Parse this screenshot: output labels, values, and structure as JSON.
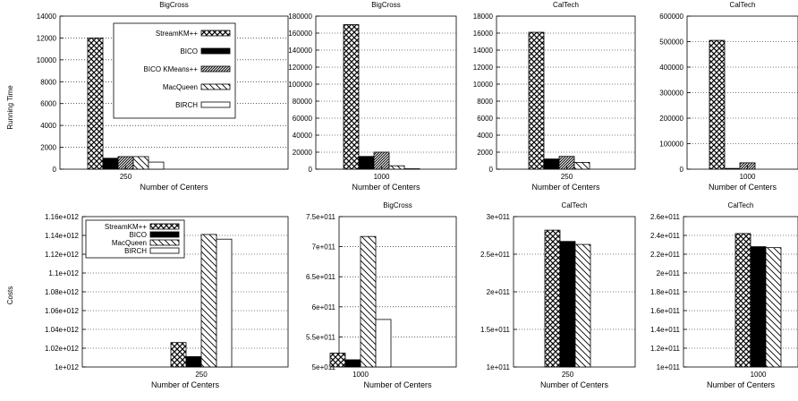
{
  "figure": {
    "row_labels": [
      "Running Time",
      "Costs"
    ]
  },
  "chart_data": [
    {
      "type": "bar",
      "title": "BigCross",
      "xlabel": "Number of Centers",
      "ylabel": "Running Time",
      "categories": [
        "250"
      ],
      "ylim": [
        0,
        14000
      ],
      "yticks": [
        0,
        2000,
        4000,
        6000,
        8000,
        10000,
        12000,
        14000
      ],
      "ytick_labels": [
        "0",
        "2000",
        "4000",
        "6000",
        "8000",
        "10000",
        "12000",
        "14000"
      ],
      "grid": true,
      "legend_position": "top-right",
      "series": [
        {
          "name": "StreamKM++",
          "values": [
            12000
          ]
        },
        {
          "name": "BICO",
          "values": [
            1000
          ]
        },
        {
          "name": "BICO KMeans++",
          "values": [
            1150
          ]
        },
        {
          "name": "MacQueen",
          "values": [
            1150
          ]
        },
        {
          "name": "BIRCH",
          "values": [
            650
          ]
        }
      ]
    },
    {
      "type": "bar",
      "title": "BigCross",
      "xlabel": "Number of Centers",
      "ylabel": "",
      "categories": [
        "1000"
      ],
      "ylim": [
        0,
        180000
      ],
      "yticks": [
        0,
        20000,
        40000,
        60000,
        80000,
        100000,
        120000,
        140000,
        160000,
        180000
      ],
      "ytick_labels": [
        "0",
        "20000",
        "40000",
        "60000",
        "80000",
        "100000",
        "120000",
        "140000",
        "160000",
        "180000"
      ],
      "grid": true,
      "series": [
        {
          "values": [
            170000
          ]
        },
        {
          "values": [
            15000
          ]
        },
        {
          "values": [
            20000
          ]
        },
        {
          "values": [
            4000
          ]
        },
        {
          "values": [
            500
          ]
        }
      ]
    },
    {
      "type": "bar",
      "title": "CalTech",
      "xlabel": "Number of Centers",
      "ylabel": "",
      "categories": [
        "250"
      ],
      "ylim": [
        0,
        18000
      ],
      "yticks": [
        0,
        2000,
        4000,
        6000,
        8000,
        10000,
        12000,
        14000,
        16000,
        18000
      ],
      "ytick_labels": [
        "0",
        "2000",
        "4000",
        "6000",
        "8000",
        "10000",
        "12000",
        "14000",
        "16000",
        "18000"
      ],
      "grid": true,
      "series": [
        {
          "values": [
            16100
          ]
        },
        {
          "values": [
            1200
          ]
        },
        {
          "values": [
            1500
          ]
        },
        {
          "values": [
            800
          ]
        },
        {
          "values": [
            0
          ]
        }
      ]
    },
    {
      "type": "bar",
      "title": "CalTech",
      "xlabel": "Number of Centers",
      "ylabel": "",
      "categories": [
        "1000"
      ],
      "ylim": [
        0,
        600000
      ],
      "yticks": [
        0,
        100000,
        200000,
        300000,
        400000,
        500000,
        600000
      ],
      "ytick_labels": [
        "0",
        "100000",
        "200000",
        "300000",
        "400000",
        "500000",
        "600000"
      ],
      "grid": true,
      "series": [
        {
          "values": [
            505000
          ]
        },
        {
          "values": [
            3000
          ]
        },
        {
          "values": [
            25000
          ]
        },
        {
          "values": [
            1000
          ]
        },
        {
          "values": [
            0
          ]
        }
      ]
    },
    {
      "type": "bar",
      "title": "",
      "xlabel": "Number of Centers",
      "ylabel": "Costs",
      "categories": [
        "250"
      ],
      "ylim": [
        1000000000000.0,
        1160000000000.0
      ],
      "yticks": [
        1000000000000.0,
        1020000000000.0,
        1040000000000.0,
        1060000000000.0,
        1080000000000.0,
        1100000000000.0,
        1120000000000.0,
        1140000000000.0,
        1160000000000.0
      ],
      "ytick_labels": [
        "1e+012",
        "1.02e+012",
        "1.04e+012",
        "1.06e+012",
        "1.08e+012",
        "1.1e+012",
        "1.12e+012",
        "1.14e+012",
        "1.16e+012"
      ],
      "grid": true,
      "legend_position": "top-left",
      "series": [
        {
          "name": "StreamKM++",
          "values": [
            1026000000000.0
          ]
        },
        {
          "name": "BICO",
          "values": [
            1011000000000.0
          ]
        },
        {
          "name": "MacQueen",
          "values": [
            1141000000000.0
          ]
        },
        {
          "name": "BIRCH",
          "values": [
            1136000000000.0
          ]
        }
      ]
    },
    {
      "type": "bar",
      "title": "BigCross",
      "xlabel": "Number of Centers",
      "ylabel": "",
      "categories": [
        "1000"
      ],
      "ylim": [
        500000000000.0,
        750000000000.0
      ],
      "yticks": [
        500000000000.0,
        550000000000.0,
        600000000000.0,
        650000000000.0,
        700000000000.0,
        750000000000.0
      ],
      "ytick_labels": [
        "5e+011",
        "5.5e+011",
        "6e+011",
        "6.5e+011",
        "7e+011",
        "7.5e+011"
      ],
      "grid": true,
      "series": [
        {
          "values": [
            523000000000.0
          ]
        },
        {
          "values": [
            512000000000.0
          ]
        },
        {
          "values": [
            717000000000.0
          ]
        },
        {
          "values": [
            579000000000.0
          ]
        }
      ]
    },
    {
      "type": "bar",
      "title": "CalTech",
      "xlabel": "Number of Centers",
      "ylabel": "",
      "categories": [
        "250"
      ],
      "ylim": [
        100000000000.0,
        300000000000.0
      ],
      "yticks": [
        100000000000.0,
        150000000000.0,
        200000000000.0,
        250000000000.0,
        300000000000.0
      ],
      "ytick_labels": [
        "1e+011",
        "1.5e+011",
        "2e+011",
        "2.5e+011",
        "3e+011"
      ],
      "grid": true,
      "series": [
        {
          "values": [
            282000000000.0
          ]
        },
        {
          "values": [
            267000000000.0
          ]
        },
        {
          "values": [
            263000000000.0
          ]
        }
      ]
    },
    {
      "type": "bar",
      "title": "CalTech",
      "xlabel": "Number of Centers",
      "ylabel": "",
      "categories": [
        "1000"
      ],
      "ylim": [
        100000000000.0,
        260000000000.0
      ],
      "yticks": [
        100000000000.0,
        120000000000.0,
        140000000000.0,
        160000000000.0,
        180000000000.0,
        200000000000.0,
        220000000000.0,
        240000000000.0,
        260000000000.0
      ],
      "ytick_labels": [
        "1e+011",
        "1.2e+011",
        "1.4e+011",
        "1.6e+011",
        "1.8e+011",
        "2e+011",
        "2.2e+011",
        "2.4e+011",
        "2.6e+011"
      ],
      "grid": true,
      "series": [
        {
          "values": [
            242000000000.0
          ]
        },
        {
          "values": [
            228000000000.0
          ]
        },
        {
          "values": [
            227000000000.0
          ]
        }
      ]
    }
  ]
}
